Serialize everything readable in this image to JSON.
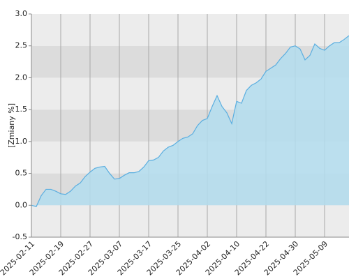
{
  "chart_data": {
    "type": "area",
    "y_label": "[Zmiany %]",
    "categories": [
      "2025-02-11",
      null,
      null,
      null,
      null,
      null,
      "2025-02-19",
      null,
      null,
      null,
      null,
      null,
      "2025-02-27",
      null,
      null,
      null,
      null,
      null,
      "2025-03-07",
      null,
      null,
      null,
      null,
      null,
      "2025-03-17",
      null,
      null,
      null,
      null,
      null,
      "2025-03-25",
      null,
      null,
      null,
      null,
      null,
      "2025-04-02",
      null,
      null,
      null,
      null,
      null,
      "2025-04-10",
      null,
      null,
      null,
      null,
      null,
      "2025-04-22",
      null,
      null,
      null,
      null,
      null,
      "2025-04-30",
      null,
      null,
      null,
      null,
      null,
      "2025-05-09",
      null,
      null,
      null,
      null,
      null
    ],
    "series": [
      {
        "color": "#5aaee0",
        "fill": "#b3ddef",
        "values": [
          0.0,
          -0.02,
          0.15,
          0.25,
          0.25,
          0.22,
          0.18,
          0.17,
          0.22,
          0.3,
          0.35,
          0.45,
          0.52,
          0.58,
          0.6,
          0.61,
          0.5,
          0.41,
          0.42,
          0.47,
          0.51,
          0.51,
          0.53,
          0.6,
          0.7,
          0.71,
          0.75,
          0.85,
          0.91,
          0.94,
          1.0,
          1.05,
          1.07,
          1.12,
          1.25,
          1.33,
          1.36,
          1.55,
          1.72,
          1.55,
          1.45,
          1.28,
          1.63,
          1.6,
          1.8,
          1.88,
          1.92,
          1.98,
          2.1,
          2.15,
          2.2,
          2.3,
          2.38,
          2.48,
          2.5,
          2.45,
          2.28,
          2.35,
          2.53,
          2.46,
          2.43,
          2.5,
          2.55,
          2.55,
          2.6,
          2.66
        ]
      }
    ],
    "ylim": [
      -0.5,
      3.0
    ],
    "yticks": [
      -0.5,
      {
        "value": 0,
        "label": "0.0"
      },
      0.5,
      {
        "value": 1,
        "label": "1.0"
      },
      1.5,
      {
        "value": 2,
        "label": "2.0"
      },
      2.5,
      {
        "value": 3,
        "label": "3.0"
      }
    ],
    "grid": true
  }
}
